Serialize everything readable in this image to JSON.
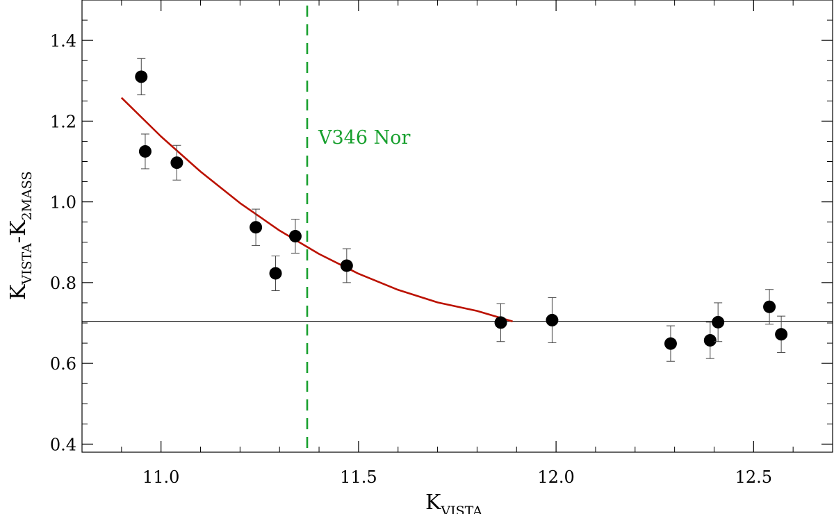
{
  "chart_data": {
    "type": "scatter",
    "title": "",
    "xlabel": {
      "main": "K",
      "sub": "VISTA"
    },
    "ylabel": {
      "main1": "K",
      "sub1": "VISTA",
      "sep": "-K",
      "sub2": "2MASS"
    },
    "xlim": [
      10.8,
      12.7
    ],
    "ylim": [
      0.38,
      1.5
    ],
    "xticks": [
      11.0,
      11.5,
      12.0,
      12.5
    ],
    "xtick_labels": [
      "11.0",
      "11.5",
      "12.0",
      "12.5"
    ],
    "yticks": [
      0.4,
      0.6,
      0.8,
      1.0,
      1.2,
      1.4
    ],
    "ytick_labels": [
      "0.4",
      "0.6",
      "0.8",
      "1.0",
      "1.2",
      "1.4"
    ],
    "grid": false,
    "points": [
      {
        "x": 10.95,
        "y": 1.31,
        "err": 0.045
      },
      {
        "x": 10.96,
        "y": 1.125,
        "err": 0.043
      },
      {
        "x": 11.04,
        "y": 1.097,
        "err": 0.043
      },
      {
        "x": 11.24,
        "y": 0.937,
        "err": 0.045
      },
      {
        "x": 11.29,
        "y": 0.823,
        "err": 0.043
      },
      {
        "x": 11.34,
        "y": 0.915,
        "err": 0.042
      },
      {
        "x": 11.47,
        "y": 0.842,
        "err": 0.042
      },
      {
        "x": 11.86,
        "y": 0.701,
        "err": 0.047
      },
      {
        "x": 11.99,
        "y": 0.707,
        "err": 0.056
      },
      {
        "x": 12.29,
        "y": 0.649,
        "err": 0.044
      },
      {
        "x": 12.39,
        "y": 0.657,
        "err": 0.045
      },
      {
        "x": 12.41,
        "y": 0.702,
        "err": 0.048
      },
      {
        "x": 12.54,
        "y": 0.74,
        "err": 0.043
      },
      {
        "x": 12.57,
        "y": 0.672,
        "err": 0.045
      }
    ],
    "fit_curve": {
      "color": "#bb1100",
      "x": [
        10.9,
        11.0,
        11.1,
        11.2,
        11.3,
        11.4,
        11.5,
        11.6,
        11.7,
        11.8,
        11.89
      ],
      "y": [
        1.258,
        1.162,
        1.075,
        0.997,
        0.929,
        0.871,
        0.822,
        0.782,
        0.751,
        0.73,
        0.704
      ]
    },
    "hline": {
      "y": 0.704,
      "color": "#000000"
    },
    "vline": {
      "x": 11.37,
      "color": "#18a02e",
      "style": "dashed",
      "label": "V346 Nor"
    }
  }
}
